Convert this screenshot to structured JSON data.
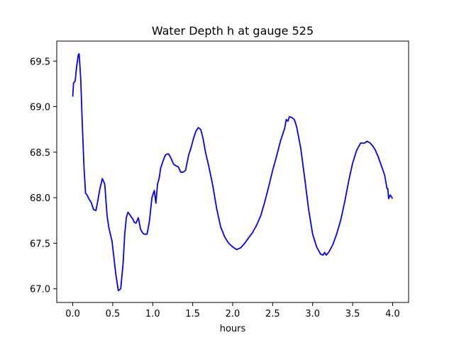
{
  "chart_data": {
    "type": "line",
    "title": "Water Depth h at gauge 525",
    "xlabel": "hours",
    "ylabel": "",
    "xlim": [
      -0.2,
      4.2
    ],
    "ylim": [
      66.85,
      69.72
    ],
    "grid": false,
    "legend": "none",
    "xticks": [
      0.0,
      0.5,
      1.0,
      1.5,
      2.0,
      2.5,
      3.0,
      3.5,
      4.0
    ],
    "xtick_labels": [
      "0.0",
      "0.5",
      "1.0",
      "1.5",
      "2.0",
      "2.5",
      "3.0",
      "3.5",
      "4.0"
    ],
    "yticks": [
      67.0,
      67.5,
      68.0,
      68.5,
      69.0,
      69.5
    ],
    "ytick_labels": [
      "67.0",
      "67.5",
      "68.0",
      "68.5",
      "69.0",
      "69.5"
    ],
    "colors": {
      "line": "#0000ff",
      "axes": "#000000",
      "background": "#ffffff"
    },
    "series": [
      {
        "color": "#0000ff",
        "x": [
          0.0,
          0.01,
          0.03,
          0.05,
          0.07,
          0.08,
          0.1,
          0.12,
          0.14,
          0.16,
          0.18,
          0.2,
          0.23,
          0.26,
          0.29,
          0.31,
          0.34,
          0.37,
          0.4,
          0.43,
          0.45,
          0.47,
          0.49,
          0.51,
          0.54,
          0.57,
          0.6,
          0.63,
          0.65,
          0.67,
          0.69,
          0.71,
          0.73,
          0.75,
          0.77,
          0.79,
          0.82,
          0.85,
          0.87,
          0.89,
          0.91,
          0.93,
          0.96,
          0.99,
          1.02,
          1.04,
          1.06,
          1.08,
          1.1,
          1.11,
          1.12,
          1.14,
          1.16,
          1.18,
          1.2,
          1.23,
          1.26,
          1.29,
          1.32,
          1.35,
          1.38,
          1.41,
          1.45,
          1.48,
          1.51,
          1.54,
          1.57,
          1.6,
          1.63,
          1.66,
          1.7,
          1.75,
          1.8,
          1.85,
          1.9,
          1.95,
          2.0,
          2.05,
          2.1,
          2.15,
          2.2,
          2.25,
          2.3,
          2.35,
          2.4,
          2.45,
          2.5,
          2.55,
          2.6,
          2.65,
          2.67,
          2.69,
          2.71,
          2.74,
          2.77,
          2.8,
          2.85,
          2.9,
          2.95,
          3.0,
          3.05,
          3.1,
          3.13,
          3.15,
          3.17,
          3.2,
          3.25,
          3.3,
          3.35,
          3.4,
          3.45,
          3.5,
          3.55,
          3.6,
          3.65,
          3.68,
          3.7,
          3.72,
          3.75,
          3.78,
          3.82,
          3.86,
          3.9,
          3.92,
          3.93,
          3.94,
          3.95,
          3.97,
          4.0
        ],
        "values": [
          69.11,
          69.26,
          69.28,
          69.45,
          69.57,
          69.58,
          69.3,
          68.8,
          68.35,
          68.05,
          68.03,
          67.99,
          67.95,
          67.87,
          67.86,
          67.95,
          68.1,
          68.21,
          68.15,
          67.8,
          67.68,
          67.6,
          67.53,
          67.38,
          67.15,
          66.98,
          67.0,
          67.28,
          67.6,
          67.78,
          67.84,
          67.82,
          67.79,
          67.77,
          67.73,
          67.72,
          67.78,
          67.65,
          67.62,
          67.6,
          67.6,
          67.6,
          67.75,
          68.0,
          68.08,
          67.94,
          68.15,
          68.21,
          68.33,
          68.35,
          68.38,
          68.43,
          68.47,
          68.48,
          68.48,
          68.43,
          68.37,
          68.35,
          68.34,
          68.28,
          68.28,
          68.3,
          68.47,
          68.55,
          68.65,
          68.73,
          68.77,
          68.75,
          68.65,
          68.5,
          68.35,
          68.14,
          67.88,
          67.68,
          67.57,
          67.5,
          67.46,
          67.43,
          67.45,
          67.5,
          67.56,
          67.62,
          67.7,
          67.8,
          67.95,
          68.12,
          68.3,
          68.46,
          68.63,
          68.76,
          68.86,
          68.84,
          68.89,
          68.88,
          68.86,
          68.78,
          68.55,
          68.22,
          67.87,
          67.6,
          67.46,
          67.38,
          67.37,
          67.4,
          67.37,
          67.4,
          67.48,
          67.6,
          67.75,
          67.95,
          68.18,
          68.38,
          68.52,
          68.6,
          68.6,
          68.62,
          68.61,
          68.6,
          68.57,
          68.53,
          68.45,
          68.35,
          68.25,
          68.15,
          68.1,
          68.1,
          67.99,
          68.03,
          67.99
        ]
      }
    ]
  }
}
